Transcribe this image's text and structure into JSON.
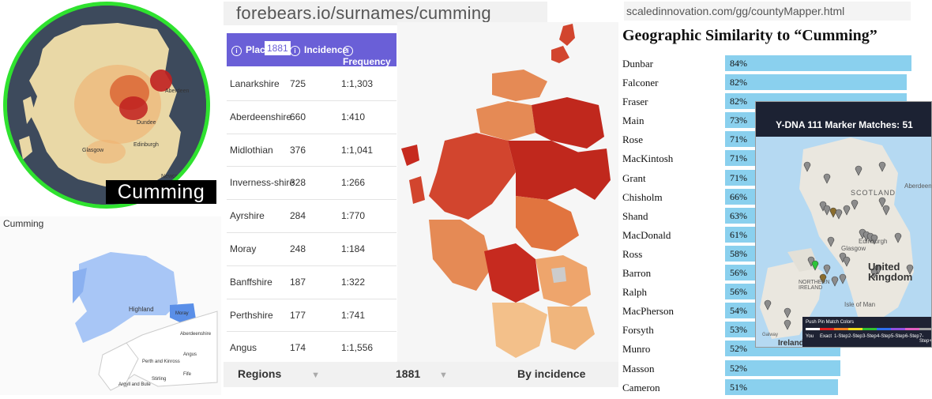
{
  "heatmap_panel": {
    "caption": "Cumming",
    "place_labels": [
      "Aberdeen",
      "Dundee",
      "Edinburgh",
      "Glasgow",
      "Newcastle"
    ]
  },
  "county_panel": {
    "title": "Cumming",
    "labels": [
      "Highland",
      "Moray",
      "Aberdeenshire",
      "Angus",
      "Perth and Kinross",
      "Fife",
      "Argyll and Bute",
      "Stirling"
    ]
  },
  "forebears": {
    "url": "forebears.io/surnames/cumming",
    "columns": {
      "place": "Place",
      "year": "1881",
      "incidence": "Incidence",
      "frequency": "Frequency"
    },
    "rows": [
      {
        "place": "Lanarkshire",
        "incidence": "725",
        "frequency": "1:1,303"
      },
      {
        "place": "Aberdeenshire",
        "incidence": "660",
        "frequency": "1:410"
      },
      {
        "place": "Midlothian",
        "incidence": "376",
        "frequency": "1:1,041"
      },
      {
        "place": "Inverness-shire",
        "incidence": "328",
        "frequency": "1:266"
      },
      {
        "place": "Ayrshire",
        "incidence": "284",
        "frequency": "1:770"
      },
      {
        "place": "Moray",
        "incidence": "248",
        "frequency": "1:184"
      },
      {
        "place": "Banffshire",
        "incidence": "187",
        "frequency": "1:322"
      },
      {
        "place": "Perthshire",
        "incidence": "177",
        "frequency": "1:741"
      },
      {
        "place": "Angus",
        "incidence": "174",
        "frequency": "1:1,556"
      }
    ],
    "footer": {
      "regions": "Regions",
      "year": "1881",
      "sort": "By incidence"
    }
  },
  "similarity": {
    "url": "scaledinnovation.com/gg/countyMapper.html",
    "title": "Geographic Similarity to “Cumming”",
    "items": [
      {
        "name": "Dunbar",
        "pct": "84%",
        "value": 84
      },
      {
        "name": "Falconer",
        "pct": "82%",
        "value": 82
      },
      {
        "name": "Fraser",
        "pct": "82%",
        "value": 82
      },
      {
        "name": "Main",
        "pct": "73%",
        "value": 73
      },
      {
        "name": "Rose",
        "pct": "71%",
        "value": 71
      },
      {
        "name": "MacKintosh",
        "pct": "71%",
        "value": 71
      },
      {
        "name": "Grant",
        "pct": "71%",
        "value": 71
      },
      {
        "name": "Chisholm",
        "pct": "66%",
        "value": 66
      },
      {
        "name": "Shand",
        "pct": "63%",
        "value": 63
      },
      {
        "name": "MacDonald",
        "pct": "61%",
        "value": 61
      },
      {
        "name": "Ross",
        "pct": "58%",
        "value": 58
      },
      {
        "name": "Barron",
        "pct": "56%",
        "value": 56
      },
      {
        "name": "Ralph",
        "pct": "56%",
        "value": 56
      },
      {
        "name": "MacPherson",
        "pct": "54%",
        "value": 54
      },
      {
        "name": "Forsyth",
        "pct": "53%",
        "value": 53
      },
      {
        "name": "Munro",
        "pct": "52%",
        "value": 52
      },
      {
        "name": "Masson",
        "pct": "52%",
        "value": 52
      },
      {
        "name": "Cameron",
        "pct": "51%",
        "value": 51
      }
    ],
    "bar_color": "#8ad0ee"
  },
  "ydna": {
    "title": "Y-DNA 111 Marker Matches: 51",
    "map_labels": [
      "SCOTLAND",
      "Aberdeen",
      "Edinburgh",
      "Glasgow",
      "United Kingdom",
      "NORTHERN IRELAND",
      "Isle of Man",
      "Ireland",
      "Galway"
    ],
    "legend_title": "Push Pin Match Colors",
    "legend_items": [
      {
        "label": "You",
        "color": "#ffffff"
      },
      {
        "label": "Exact",
        "color": "#e02020"
      },
      {
        "label": "1-Step",
        "color": "#f08020"
      },
      {
        "label": "2-Step",
        "color": "#f0e020"
      },
      {
        "label": "3-Step",
        "color": "#30c030"
      },
      {
        "label": "4-Step",
        "color": "#3070f0"
      },
      {
        "label": "5-Step",
        "color": "#9050e0"
      },
      {
        "label": "6-Step",
        "color": "#e060c0"
      },
      {
        "label": "7-Step+",
        "color": "#a0a0a0"
      }
    ]
  },
  "colors": {
    "header_purple": "#6a5fd7",
    "ring_green": "#2fe22f"
  }
}
